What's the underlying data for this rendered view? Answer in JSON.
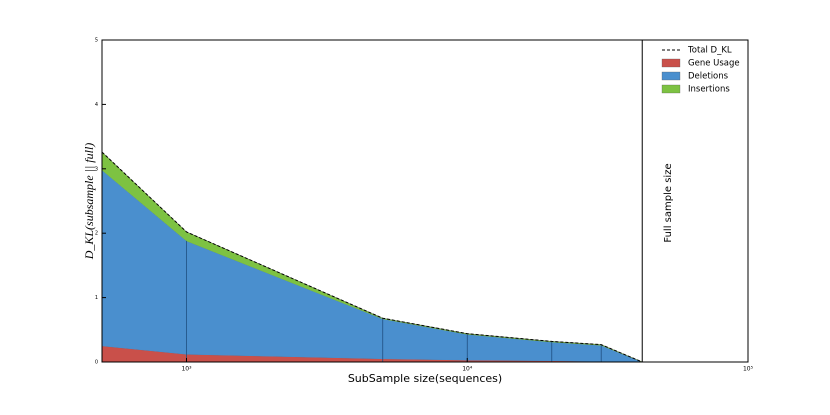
{
  "chart_data": {
    "type": "stacked_area",
    "xlabel": "SubSample size(sequences)",
    "ylabel": "D_KL(subsample || full)",
    "x": [
      500,
      1000,
      5000,
      10000,
      20000,
      30000,
      42000
    ],
    "series": [
      {
        "name": "Gene Usage",
        "color": "#c9504a",
        "values": [
          0.25,
          0.12,
          0.05,
          0.03,
          0.02,
          0.01,
          0
        ]
      },
      {
        "name": "Deletions",
        "color": "#4a8fce",
        "values": [
          2.73,
          1.76,
          0.62,
          0.4,
          0.29,
          0.25,
          0
        ]
      },
      {
        "name": "Insertions",
        "color": "#7dc242",
        "values": [
          0.28,
          0.14,
          0.01,
          0.01,
          0.01,
          0.01,
          0
        ]
      }
    ],
    "total": {
      "name": "Total D_KL",
      "color": "#000000",
      "dashed": true,
      "values": [
        3.26,
        2.02,
        0.68,
        0.44,
        0.32,
        0.27,
        0
      ]
    },
    "annotation": {
      "x": 42000,
      "text": "Full sample size"
    },
    "xscale": "log",
    "xlim": [
      500,
      100000
    ],
    "xticks": [
      {
        "value": 1000,
        "label": "10³"
      },
      {
        "value": 10000,
        "label": "10⁴"
      },
      {
        "value": 100000,
        "label": "10⁵"
      }
    ],
    "ylim": [
      0,
      5
    ],
    "yticks": [
      0,
      1,
      2,
      3,
      4,
      5
    ],
    "legend": "upper right"
  }
}
